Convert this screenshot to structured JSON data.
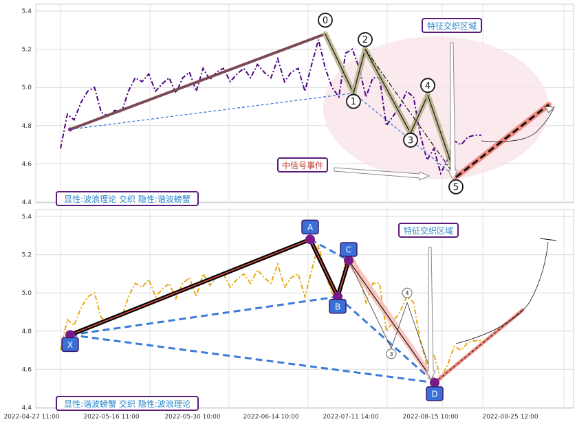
{
  "chart_data": [
    {
      "type": "line",
      "panel": "top",
      "ylim": [
        4.4,
        5.4
      ],
      "yticks": [
        "4.4",
        "4.6",
        "4.8",
        "5.0",
        "5.2",
        "5.4"
      ],
      "series": [
        {
          "color": "#4b0082",
          "style": "dash-dot",
          "values": [
            4.68,
            4.86,
            4.83,
            4.92,
            4.98,
            5.0,
            4.87,
            4.85,
            4.88,
            4.87,
            4.98,
            5.05,
            5.03,
            5.07,
            4.98,
            5.02,
            5.05,
            4.97,
            5.05,
            5.08,
            4.98,
            5.1,
            5.04,
            5.08,
            5.1,
            5.03,
            5.07,
            5.1,
            5.05,
            5.12,
            5.08,
            5.05,
            5.15,
            5.03,
            5.08,
            5.1,
            4.98,
            5.12,
            5.25,
            5.1,
            5.0,
            4.95,
            5.18,
            5.2,
            5.1,
            4.95,
            5.05,
            5.05,
            4.8,
            4.85,
            4.9,
            4.98,
            4.95,
            4.75,
            4.62,
            4.68,
            4.55,
            4.62,
            4.72,
            4.7,
            4.74,
            4.75,
            4.75
          ]
        }
      ],
      "elliott_wave": {
        "points": [
          {
            "label": "0",
            "value": 5.28
          },
          {
            "label": "1",
            "value": 4.97
          },
          {
            "label": "2",
            "value": 5.2
          },
          {
            "label": "3",
            "value": 4.76
          },
          {
            "label": "4",
            "value": 4.96
          },
          {
            "label": "5",
            "value": 4.53
          }
        ],
        "trend_start_value": 4.78,
        "projection_end_value": 4.91
      },
      "annotations": {
        "feature_zone": "特征交织区域",
        "signal_event": "中信号事件",
        "panel_caption": "显性:波浪理论 交织 隐性:谐波螃蟹"
      }
    },
    {
      "type": "line",
      "panel": "bottom",
      "ylim": [
        4.4,
        5.4
      ],
      "yticks": [
        "4.4",
        "4.6",
        "4.8",
        "5.0",
        "5.2",
        "5.4"
      ],
      "xticks": [
        "2022-04-27 11:00",
        "2022-05-16 11:00",
        "2022-05-30 10:00",
        "2022-06-14 10:00",
        "2022-07-11 14:00",
        "2022-08-15 10:00",
        "2022-08-25 12:00"
      ],
      "series": [
        {
          "color": "#e6a817",
          "style": "dash-dot",
          "values": [
            4.7,
            4.86,
            4.83,
            4.92,
            4.98,
            5.0,
            4.87,
            4.85,
            4.88,
            4.87,
            4.98,
            5.05,
            5.03,
            5.07,
            4.98,
            5.02,
            5.05,
            4.97,
            5.05,
            5.08,
            4.98,
            5.1,
            5.04,
            5.08,
            5.1,
            5.03,
            5.07,
            5.1,
            5.05,
            5.12,
            5.08,
            5.05,
            5.15,
            5.03,
            5.08,
            5.1,
            4.98,
            5.12,
            5.25,
            5.1,
            5.0,
            4.95,
            5.18,
            5.2,
            5.1,
            4.95,
            5.05,
            5.05,
            4.8,
            4.85,
            4.9,
            4.98,
            4.95,
            4.75,
            4.62,
            4.68,
            4.55,
            4.62,
            4.72,
            4.7,
            4.74,
            4.75,
            4.75
          ]
        }
      ],
      "harmonic_crab": {
        "points": [
          {
            "label": "X",
            "value": 4.78
          },
          {
            "label": "A",
            "value": 5.28
          },
          {
            "label": "B",
            "value": 4.98
          },
          {
            "label": "C",
            "value": 5.17
          },
          {
            "label": "D",
            "value": 4.53
          }
        ],
        "minor_wave_labels": [
          "3",
          "4"
        ],
        "projection_end_value": 4.91
      },
      "annotations": {
        "feature_zone": "特征交织区域",
        "panel_caption": "显性:谐波螃蟹 交织 隐性:波浪理论"
      }
    }
  ]
}
